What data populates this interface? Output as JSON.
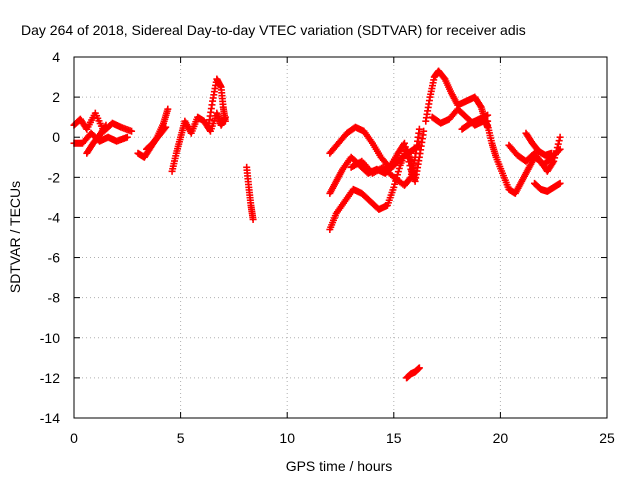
{
  "chart_data": {
    "type": "scatter",
    "title": "Day 264 of 2018, Sidereal Day-to-day VTEC variation (SDTVAR) for receiver adis",
    "xlabel": "GPS time / hours",
    "ylabel": "SDTVAR / TECUs",
    "xlim": [
      0,
      25
    ],
    "ylim": [
      -14,
      4
    ],
    "xticks": [
      0,
      5,
      10,
      15,
      20,
      25
    ],
    "yticks": [
      -14,
      -12,
      -10,
      -8,
      -6,
      -4,
      -2,
      0,
      2,
      4
    ],
    "grid": true,
    "marker": "+",
    "series": [
      {
        "name": "SDTVAR",
        "color": "#ff0000",
        "tracks": [
          {
            "x": [
              0.0,
              0.3,
              0.6,
              1.0,
              1.4,
              1.8,
              2.2,
              2.7
            ],
            "y": [
              0.6,
              0.9,
              0.4,
              1.2,
              0.3,
              0.7,
              0.5,
              0.3
            ]
          },
          {
            "x": [
              0.0,
              0.4,
              0.8,
              1.2,
              1.6,
              2.0,
              2.5
            ],
            "y": [
              -0.3,
              -0.3,
              0.2,
              -0.2,
              0.0,
              -0.2,
              0.0
            ]
          },
          {
            "x": [
              0.6,
              0.9,
              1.2,
              1.5
            ],
            "y": [
              -0.8,
              -0.3,
              0.1,
              0.6
            ]
          },
          {
            "x": [
              3.0,
              3.3,
              3.6,
              3.9,
              4.2,
              4.4
            ],
            "y": [
              -0.8,
              -1.0,
              -0.5,
              0.0,
              0.7,
              1.4
            ]
          },
          {
            "x": [
              3.4,
              3.7,
              4.0,
              4.3
            ],
            "y": [
              -0.6,
              -0.3,
              0.1,
              0.5
            ]
          },
          {
            "x": [
              4.6,
              4.8,
              5.0,
              5.2,
              5.5,
              5.8,
              6.1,
              6.4,
              6.7,
              6.9,
              7.1
            ],
            "y": [
              -1.7,
              -0.8,
              0.0,
              0.8,
              0.2,
              1.0,
              0.8,
              0.3,
              1.2,
              0.6,
              1.0
            ]
          },
          {
            "x": [
              6.3,
              6.5,
              6.7,
              6.9,
              7.0,
              7.1
            ],
            "y": [
              0.5,
              1.8,
              2.9,
              2.5,
              1.5,
              0.8
            ]
          },
          {
            "x": [
              8.1,
              8.2,
              8.3,
              8.4
            ],
            "y": [
              -1.5,
              -2.5,
              -3.4,
              -4.1
            ]
          },
          {
            "x": [
              12.0,
              12.4,
              12.8,
              13.2,
              13.6,
              14.0,
              14.4,
              14.8,
              15.2,
              15.5,
              15.8,
              16.0,
              16.2,
              16.4
            ],
            "y": [
              -0.8,
              -0.3,
              0.2,
              0.5,
              0.3,
              -0.3,
              -1.0,
              -1.5,
              -0.8,
              -0.3,
              -1.6,
              -2.2,
              -1.0,
              0.3
            ]
          },
          {
            "x": [
              12.0,
              12.3,
              12.6,
              13.0,
              13.4,
              13.8,
              14.2,
              14.6,
              15.0,
              15.4,
              15.8,
              16.2
            ],
            "y": [
              -2.8,
              -2.2,
              -1.6,
              -1.0,
              -1.4,
              -1.8,
              -1.6,
              -1.8,
              -1.4,
              -1.0,
              -0.7,
              -0.4
            ]
          },
          {
            "x": [
              12.0,
              12.3,
              12.7,
              13.1,
              13.5,
              13.9,
              14.3,
              14.7,
              15.0,
              15.3,
              15.6,
              15.8,
              16.0
            ],
            "y": [
              -4.6,
              -3.8,
              -3.2,
              -2.6,
              -2.8,
              -3.2,
              -3.6,
              -3.4,
              -2.5,
              -1.4,
              -0.6,
              -1.2,
              -2.0
            ]
          },
          {
            "x": [
              13.0,
              13.5,
              14.0,
              14.5,
              15.0,
              15.5,
              15.8,
              16.0,
              16.2
            ],
            "y": [
              -1.5,
              -1.2,
              -1.8,
              -1.5,
              -2.0,
              -2.4,
              -2.0,
              -1.0,
              0.4
            ]
          },
          {
            "x": [
              15.6,
              15.8,
              16.0,
              16.2
            ],
            "y": [
              -12.0,
              -11.8,
              -11.7,
              -11.5
            ]
          },
          {
            "x": [
              16.5,
              16.7,
              16.9,
              17.1,
              17.4,
              17.7,
              18.0,
              18.4,
              18.8,
              19.1,
              19.3,
              19.4
            ],
            "y": [
              0.8,
              2.0,
              3.0,
              3.3,
              2.9,
              2.2,
              1.6,
              1.8,
              2.0,
              1.5,
              0.8,
              0.5
            ]
          },
          {
            "x": [
              16.8,
              17.2,
              17.6,
              18.0,
              18.4,
              18.8,
              19.2,
              19.4
            ],
            "y": [
              1.0,
              0.7,
              0.9,
              1.4,
              1.0,
              0.6,
              0.8,
              0.8
            ]
          },
          {
            "x": [
              18.2,
              18.6,
              19.0,
              19.4
            ],
            "y": [
              0.4,
              0.7,
              0.9,
              1.1
            ]
          },
          {
            "x": [
              19.4,
              19.6,
              19.8,
              20.1,
              20.4,
              20.7,
              21.0,
              21.3,
              21.6,
              21.9,
              22.2,
              22.5,
              22.8
            ],
            "y": [
              0.6,
              -0.3,
              -1.0,
              -1.8,
              -2.6,
              -2.8,
              -2.2,
              -1.6,
              -1.0,
              -1.2,
              -1.7,
              -1.2,
              0.0
            ]
          },
          {
            "x": [
              20.4,
              20.8,
              21.2,
              21.6,
              22.0,
              22.4,
              22.8
            ],
            "y": [
              -0.4,
              -0.9,
              -1.2,
              -0.8,
              -1.4,
              -1.0,
              -0.6
            ]
          },
          {
            "x": [
              21.6,
              21.9,
              22.2,
              22.5,
              22.8
            ],
            "y": [
              -2.3,
              -2.6,
              -2.7,
              -2.5,
              -2.3
            ]
          },
          {
            "x": [
              21.2,
              21.5,
              21.8,
              22.1,
              22.4
            ],
            "y": [
              0.2,
              -0.3,
              -0.7,
              -0.9,
              -0.8
            ]
          }
        ]
      }
    ]
  }
}
